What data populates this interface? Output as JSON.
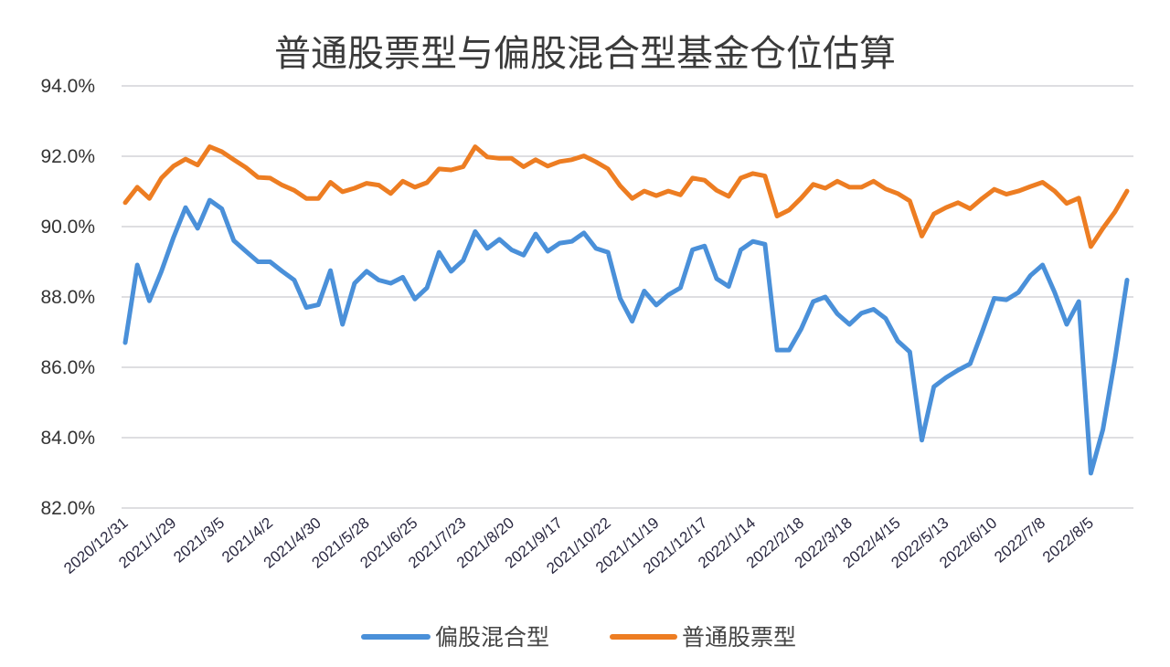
{
  "chart_data": {
    "type": "line",
    "title": "普通股票型与偏股混合型基金仓位估算",
    "xlabel": "",
    "ylabel": "",
    "ylim": [
      82,
      94
    ],
    "y_ticks": [
      "82.0%",
      "84.0%",
      "86.0%",
      "88.0%",
      "90.0%",
      "92.0%",
      "94.0%"
    ],
    "y_tick_values": [
      82,
      84,
      86,
      88,
      90,
      92,
      94
    ],
    "x_tick_labels": [
      "2020/12/31",
      "2021/1/29",
      "2021/3/5",
      "2021/4/2",
      "2021/4/30",
      "2021/5/28",
      "2021/6/25",
      "2021/7/23",
      "2021/8/20",
      "2021/9/17",
      "2021/10/22",
      "2021/11/19",
      "2021/12/17",
      "2022/1/14",
      "2022/2/18",
      "2022/3/18",
      "2022/4/15",
      "2022/5/13",
      "2022/6/10",
      "2022/7/8",
      "2022/8/5"
    ],
    "x_tick_every": 4,
    "grid": "horizontal",
    "legend_position": "bottom",
    "series": [
      {
        "name": "偏股混合型",
        "color": "#4a90d9",
        "values": [
          86.7,
          88.91,
          87.89,
          88.73,
          89.69,
          90.54,
          89.95,
          90.75,
          90.51,
          89.6,
          89.3,
          89.0,
          89.0,
          88.73,
          88.48,
          87.7,
          87.78,
          88.75,
          87.22,
          88.39,
          88.73,
          88.48,
          88.39,
          88.56,
          87.94,
          88.26,
          89.27,
          88.73,
          89.04,
          89.86,
          89.38,
          89.64,
          89.34,
          89.19,
          89.79,
          89.3,
          89.53,
          89.58,
          89.82,
          89.38,
          89.27,
          87.96,
          87.31,
          88.17,
          87.77,
          88.06,
          88.26,
          89.34,
          89.45,
          88.52,
          88.3,
          89.34,
          89.58,
          89.5,
          86.49,
          86.49,
          87.09,
          87.87,
          88.0,
          87.52,
          87.22,
          87.54,
          87.65,
          87.39,
          86.75,
          86.44,
          83.93,
          85.45,
          85.71,
          85.92,
          86.1,
          87.01,
          87.96,
          87.92,
          88.13,
          88.61,
          88.91,
          88.13,
          87.22,
          87.87,
          82.99,
          84.23,
          86.23,
          88.48
        ]
      },
      {
        "name": "普通股票型",
        "color": "#ed7d22",
        "values": [
          90.68,
          91.12,
          90.8,
          91.38,
          91.72,
          91.92,
          91.75,
          92.27,
          92.13,
          91.9,
          91.68,
          91.4,
          91.38,
          91.18,
          91.03,
          90.8,
          90.8,
          91.26,
          90.99,
          91.09,
          91.23,
          91.18,
          90.94,
          91.29,
          91.12,
          91.25,
          91.64,
          91.61,
          91.7,
          92.27,
          91.98,
          91.94,
          91.94,
          91.7,
          91.9,
          91.72,
          91.85,
          91.9,
          92.01,
          91.84,
          91.64,
          91.16,
          90.8,
          91.01,
          90.88,
          91.01,
          90.9,
          91.38,
          91.32,
          91.03,
          90.86,
          91.38,
          91.51,
          91.44,
          90.3,
          90.47,
          90.81,
          91.2,
          91.09,
          91.29,
          91.12,
          91.12,
          91.29,
          91.07,
          90.94,
          90.73,
          89.73,
          90.36,
          90.54,
          90.68,
          90.51,
          90.8,
          91.06,
          90.92,
          91.01,
          91.14,
          91.26,
          91.01,
          90.66,
          90.81,
          89.43,
          89.95,
          90.42,
          91.01
        ]
      }
    ]
  }
}
